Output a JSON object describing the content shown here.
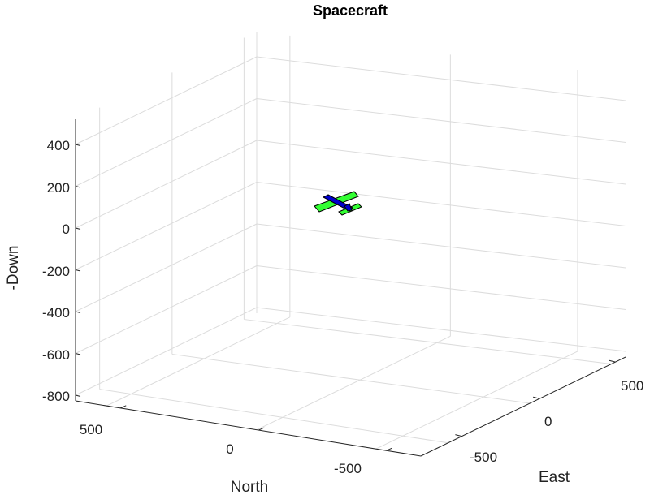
{
  "chart_data": {
    "type": "3d-plot",
    "title": "Spacecraft",
    "xlabel": "North",
    "ylabel": "East",
    "zlabel": "-Down",
    "north_ticks": [
      "500",
      "0",
      "-500"
    ],
    "east_ticks": [
      "-500",
      "0",
      "500"
    ],
    "down_ticks": [
      "400",
      "200",
      "0",
      "-200",
      "-400",
      "-600",
      "-800"
    ],
    "grid": true,
    "object": {
      "name": "spacecraft",
      "position": {
        "north": 0,
        "east": 0,
        "minus_down": 100
      },
      "wing_color": "#33ff33",
      "body_color": "#0000cc",
      "outline_color": "#000000"
    }
  }
}
